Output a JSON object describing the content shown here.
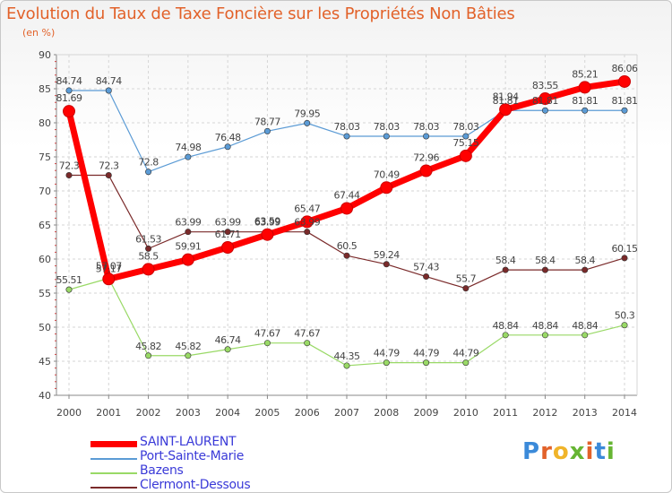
{
  "chart_data": {
    "type": "line",
    "title": "Evolution du Taux de Taxe Foncière sur les Propriétés Non Bâties",
    "ylabel": "(en %)",
    "xlabel": "",
    "ylim": [
      40,
      90
    ],
    "yticks": [
      "40",
      "45",
      "50",
      "55",
      "60",
      "65",
      "70",
      "75",
      "80",
      "85",
      "90"
    ],
    "categories": [
      "2000",
      "2001",
      "2002",
      "2003",
      "2004",
      "2005",
      "2006",
      "2007",
      "2008",
      "2009",
      "2010",
      "2011",
      "2012",
      "2013",
      "2014"
    ],
    "series": [
      {
        "name": "SAINT-LAURENT",
        "color": "#ff0000",
        "values": [
          81.69,
          57.07,
          58.5,
          59.91,
          61.71,
          63.59,
          65.47,
          67.44,
          70.49,
          72.96,
          75.15,
          81.94,
          83.55,
          85.21,
          86.06
        ],
        "labels": [
          "81.69",
          "57.07",
          "58.5",
          "59.91",
          "61.71",
          "63.59",
          "65.47",
          "67.44",
          "70.49",
          "72.96",
          "75.15",
          "81.94",
          "83.55",
          "85.21",
          "86.06"
        ]
      },
      {
        "name": "Port-Sainte-Marie",
        "color": "#5b9bd5",
        "values": [
          84.74,
          84.74,
          72.8,
          74.98,
          76.48,
          78.77,
          79.95,
          78.03,
          78.03,
          78.03,
          78.03,
          81.81,
          81.81,
          81.81,
          81.81
        ],
        "labels": [
          "84.74",
          "84.74",
          "72.8",
          "74.98",
          "76.48",
          "78.77",
          "79.95",
          "78.03",
          "78.03",
          "78.03",
          "78.03",
          "81.81",
          "81.81",
          "81.81",
          "81.81"
        ]
      },
      {
        "name": "Bazens",
        "color": "#99d966",
        "values": [
          55.51,
          57.17,
          45.82,
          45.82,
          46.74,
          47.67,
          47.67,
          44.35,
          44.79,
          44.79,
          44.79,
          48.84,
          48.84,
          48.84,
          50.3
        ],
        "labels": [
          "55.51",
          "57.17",
          "45.82",
          "45.82",
          "46.74",
          "47.67",
          "47.67",
          "44.35",
          "44.79",
          "44.79",
          "44.79",
          "48.84",
          "48.84",
          "48.84",
          "50.3"
        ]
      },
      {
        "name": "Clermont-Dessous",
        "color": "#7a2a2a",
        "values": [
          72.3,
          72.3,
          61.53,
          63.99,
          63.99,
          63.99,
          63.99,
          60.5,
          59.24,
          57.43,
          55.7,
          58.4,
          58.4,
          58.4,
          60.15
        ],
        "labels": [
          "72.3",
          "72.3",
          "61.53",
          "63.99",
          "63.99",
          "63.99",
          "63.99",
          "60.5",
          "59.24",
          "57.43",
          "55.7",
          "58.4",
          "58.4",
          "58.4",
          "60.15"
        ]
      }
    ],
    "legend_position": "bottom-left"
  },
  "logo": {
    "text": "Proxiti"
  }
}
